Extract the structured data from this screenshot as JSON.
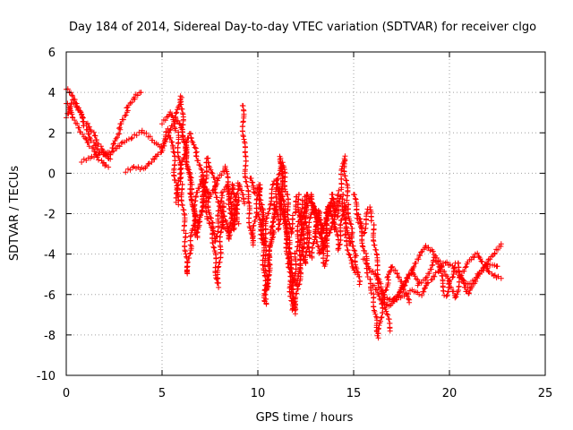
{
  "chart_data": {
    "type": "scatter",
    "title": "Day 184 of 2014, Sidereal Day-to-day VTEC variation (SDTVAR) for receiver clgo",
    "xlabel": "GPS time / hours",
    "ylabel": "SDTVAR / TECUs",
    "xlim": [
      0,
      25
    ],
    "ylim": [
      -10,
      6
    ],
    "x_ticks": [
      0,
      5,
      10,
      15,
      20,
      25
    ],
    "y_ticks": [
      -10,
      -8,
      -6,
      -4,
      -2,
      0,
      2,
      4,
      6
    ],
    "x_tick_labels": [
      "0",
      "5",
      "10",
      "15",
      "20",
      "25"
    ],
    "y_tick_labels": [
      "-10",
      "-8",
      "-6",
      "-4",
      "-2",
      "0",
      "2",
      "4",
      "6"
    ],
    "grid": true,
    "marker": "+",
    "colors": {
      "series": "#ff0000",
      "grid": "#a0a0a0",
      "axis": "#000000"
    },
    "series": [
      {
        "name": "clgo",
        "trace_segments": [
          [
            [
              0.0,
              4.2
            ],
            [
              0.3,
              3.8
            ],
            [
              0.6,
              3.2
            ],
            [
              1.0,
              2.5
            ],
            [
              1.4,
              2.0
            ],
            [
              1.8,
              1.3
            ],
            [
              2.2,
              0.8
            ],
            [
              2.6,
              1.2
            ],
            [
              3.0,
              1.5
            ],
            [
              3.5,
              1.8
            ],
            [
              4.0,
              2.1
            ],
            [
              4.5,
              1.6
            ],
            [
              5.0,
              1.2
            ],
            [
              5.3,
              2.2
            ]
          ],
          [
            [
              0.0,
              3.5
            ],
            [
              0.4,
              2.6
            ],
            [
              0.8,
              1.9
            ],
            [
              1.3,
              1.3
            ],
            [
              1.8,
              0.6
            ],
            [
              2.2,
              0.3
            ]
          ],
          [
            [
              0.0,
              2.8
            ],
            [
              0.3,
              3.6
            ],
            [
              0.7,
              3.0
            ],
            [
              1.0,
              2.2
            ],
            [
              1.4,
              1.5
            ],
            [
              1.9,
              0.9
            ],
            [
              2.4,
              1.1
            ],
            [
              2.8,
              2.2
            ],
            [
              3.2,
              3.2
            ],
            [
              3.6,
              3.8
            ],
            [
              3.9,
              4.0
            ]
          ],
          [
            [
              0.8,
              0.6
            ],
            [
              1.3,
              0.8
            ],
            [
              1.8,
              1.0
            ],
            [
              2.3,
              0.7
            ]
          ],
          [
            [
              3.1,
              0.1
            ],
            [
              3.5,
              0.3
            ],
            [
              4.0,
              0.2
            ],
            [
              4.4,
              0.6
            ],
            [
              4.9,
              1.0
            ],
            [
              5.3,
              1.8
            ],
            [
              5.7,
              2.6
            ],
            [
              6.0,
              3.8
            ],
            [
              6.1,
              2.0
            ],
            [
              6.3,
              0.5
            ],
            [
              6.6,
              -1.5
            ],
            [
              6.8,
              -3.0
            ],
            [
              7.0,
              -2.0
            ],
            [
              7.3,
              -0.8
            ],
            [
              7.6,
              -2.5
            ],
            [
              7.9,
              -5.6
            ],
            [
              8.2,
              -1.5
            ],
            [
              8.5,
              -3.3
            ],
            [
              8.7,
              -0.5
            ],
            [
              9.0,
              -2.5
            ]
          ],
          [
            [
              5.0,
              2.5
            ],
            [
              5.4,
              3.0
            ],
            [
              5.8,
              2.0
            ],
            [
              6.0,
              -0.5
            ],
            [
              6.2,
              -3.0
            ],
            [
              6.3,
              -5.0
            ],
            [
              6.5,
              -3.5
            ],
            [
              6.8,
              -1.2
            ],
            [
              7.1,
              -0.2
            ],
            [
              7.4,
              -2.2
            ],
            [
              7.8,
              -3.4
            ],
            [
              8.1,
              -1.0
            ],
            [
              8.4,
              -0.5
            ],
            [
              8.7,
              -2.8
            ],
            [
              9.0,
              -1.2
            ]
          ],
          [
            [
              5.4,
              1.8
            ],
            [
              5.6,
              1.0
            ],
            [
              5.7,
              -0.5
            ],
            [
              5.8,
              -1.5
            ],
            [
              5.9,
              -0.3
            ],
            [
              6.2,
              1.2
            ],
            [
              6.5,
              2.0
            ],
            [
              6.8,
              1.0
            ],
            [
              7.2,
              -0.5
            ],
            [
              7.5,
              -1.2
            ],
            [
              7.9,
              -0.3
            ],
            [
              8.3,
              0.3
            ],
            [
              8.6,
              -1.5
            ],
            [
              8.9,
              -2.0
            ]
          ],
          [
            [
              5.6,
              2.8
            ],
            [
              5.9,
              2.4
            ],
            [
              6.2,
              1.5
            ],
            [
              6.5,
              -0.5
            ],
            [
              6.8,
              -3.2
            ],
            [
              7.1,
              -1.5
            ],
            [
              7.4,
              0.8
            ],
            [
              7.8,
              -0.8
            ],
            [
              8.2,
              -2.6
            ],
            [
              8.6,
              -3.0
            ],
            [
              9.0,
              -0.5
            ],
            [
              9.3,
              -1.5
            ]
          ],
          [
            [
              9.2,
              3.4
            ],
            [
              9.3,
              1.0
            ],
            [
              9.5,
              -1.5
            ],
            [
              9.7,
              -3.5
            ],
            [
              9.9,
              -2.0
            ],
            [
              10.1,
              -0.6
            ],
            [
              10.3,
              -2.5
            ],
            [
              10.5,
              -5.8
            ],
            [
              10.7,
              -3.0
            ],
            [
              10.9,
              -1.5
            ],
            [
              11.1,
              -2.8
            ],
            [
              11.3,
              0.5
            ],
            [
              11.5,
              -1.0
            ],
            [
              11.7,
              -3.0
            ],
            [
              11.9,
              -2.0
            ],
            [
              12.1,
              -1.0
            ],
            [
              12.3,
              -3.5
            ],
            [
              12.5,
              -4.5
            ],
            [
              12.7,
              -2.6
            ],
            [
              12.9,
              -1.5
            ],
            [
              13.1,
              -2.0
            ],
            [
              13.3,
              -2.9
            ],
            [
              13.5,
              -4.6
            ],
            [
              13.7,
              -3.0
            ],
            [
              14.0,
              -2.0
            ],
            [
              14.3,
              -0.8
            ],
            [
              14.5,
              0.8
            ],
            [
              14.7,
              -1.5
            ],
            [
              14.9,
              -3.0
            ],
            [
              15.1,
              -4.2
            ],
            [
              15.3,
              -5.5
            ]
          ],
          [
            [
              9.6,
              -0.2
            ],
            [
              9.8,
              -1.0
            ],
            [
              10.0,
              -0.6
            ],
            [
              10.2,
              -2.0
            ],
            [
              10.4,
              -6.5
            ],
            [
              10.6,
              -4.2
            ],
            [
              10.8,
              -2.8
            ],
            [
              11.0,
              -0.8
            ],
            [
              11.2,
              0.8
            ],
            [
              11.4,
              -2.2
            ],
            [
              11.6,
              -4.5
            ],
            [
              11.8,
              -6.8
            ],
            [
              12.0,
              -3.8
            ],
            [
              12.2,
              -2.0
            ],
            [
              12.4,
              -1.2
            ],
            [
              12.6,
              -3.6
            ],
            [
              12.8,
              -4.2
            ],
            [
              13.0,
              -3.2
            ],
            [
              13.2,
              -1.8
            ],
            [
              13.4,
              -3.0
            ],
            [
              13.6,
              -2.0
            ],
            [
              13.9,
              -1.0
            ],
            [
              14.2,
              -3.8
            ],
            [
              14.5,
              -1.5
            ],
            [
              14.8,
              -3.5
            ]
          ],
          [
            [
              10.0,
              -2.0
            ],
            [
              10.3,
              -3.5
            ],
            [
              10.6,
              -1.6
            ],
            [
              10.9,
              -0.3
            ],
            [
              11.2,
              -1.2
            ],
            [
              11.5,
              -2.8
            ],
            [
              11.8,
              -5.0
            ],
            [
              12.1,
              -5.6
            ],
            [
              12.3,
              -2.5
            ],
            [
              12.6,
              -1.0
            ],
            [
              12.9,
              -1.8
            ],
            [
              13.2,
              -4.0
            ],
            [
              13.5,
              -3.5
            ],
            [
              13.8,
              -1.5
            ],
            [
              14.1,
              -2.2
            ],
            [
              14.4,
              -1.0
            ],
            [
              14.6,
              -3.2
            ],
            [
              14.9,
              -4.5
            ],
            [
              15.2,
              -5.0
            ]
          ],
          [
            [
              11.0,
              -0.5
            ],
            [
              11.3,
              -1.8
            ],
            [
              11.6,
              -3.2
            ],
            [
              11.9,
              -6.9
            ],
            [
              12.2,
              -5.0
            ],
            [
              12.5,
              -2.2
            ],
            [
              12.8,
              -1.0
            ],
            [
              13.1,
              -2.4
            ],
            [
              13.4,
              -3.8
            ],
            [
              13.7,
              -1.6
            ],
            [
              14.0,
              -2.8
            ]
          ],
          [
            [
              15.0,
              -1.0
            ],
            [
              15.3,
              -2.5
            ],
            [
              15.6,
              -4.0
            ],
            [
              15.8,
              -5.2
            ],
            [
              16.0,
              -6.0
            ],
            [
              16.2,
              -7.3
            ],
            [
              16.3,
              -8.1
            ],
            [
              16.5,
              -6.5
            ],
            [
              16.8,
              -5.2
            ],
            [
              17.0,
              -4.6
            ],
            [
              17.3,
              -5.0
            ],
            [
              17.6,
              -5.8
            ],
            [
              17.9,
              -6.4
            ]
          ],
          [
            [
              15.2,
              -2.0
            ],
            [
              15.5,
              -3.0
            ],
            [
              15.8,
              -1.7
            ],
            [
              16.0,
              -2.5
            ],
            [
              16.2,
              -4.4
            ],
            [
              16.4,
              -5.5
            ],
            [
              16.6,
              -6.2
            ],
            [
              16.9,
              -7.8
            ]
          ],
          [
            [
              15.5,
              -4.2
            ],
            [
              15.8,
              -4.8
            ],
            [
              16.1,
              -5.0
            ],
            [
              16.4,
              -5.8
            ],
            [
              16.7,
              -6.2
            ],
            [
              17.0,
              -6.3
            ],
            [
              17.4,
              -6.0
            ],
            [
              17.8,
              -5.2
            ],
            [
              18.1,
              -4.8
            ],
            [
              18.4,
              -5.5
            ],
            [
              18.8,
              -5.2
            ],
            [
              19.2,
              -4.2
            ],
            [
              19.5,
              -4.8
            ],
            [
              19.8,
              -6.1
            ],
            [
              20.1,
              -5.2
            ],
            [
              20.4,
              -4.4
            ],
            [
              20.7,
              -5.3
            ],
            [
              21.0,
              -6.0
            ],
            [
              21.4,
              -5.3
            ],
            [
              21.8,
              -4.7
            ],
            [
              22.1,
              -4.3
            ],
            [
              22.4,
              -3.9
            ],
            [
              22.7,
              -3.5
            ]
          ],
          [
            [
              16.0,
              -5.5
            ],
            [
              16.4,
              -6.3
            ],
            [
              16.8,
              -6.6
            ],
            [
              17.2,
              -6.2
            ],
            [
              17.6,
              -5.6
            ],
            [
              18.0,
              -5.0
            ],
            [
              18.4,
              -4.2
            ],
            [
              18.8,
              -3.6
            ],
            [
              19.2,
              -3.9
            ],
            [
              19.6,
              -4.6
            ],
            [
              20.0,
              -5.5
            ],
            [
              20.3,
              -6.2
            ],
            [
              20.6,
              -5.0
            ],
            [
              21.0,
              -4.3
            ],
            [
              21.4,
              -4.0
            ],
            [
              21.8,
              -4.5
            ],
            [
              22.2,
              -5.0
            ],
            [
              22.7,
              -5.2
            ]
          ],
          [
            [
              17.0,
              -6.3
            ],
            [
              17.5,
              -6.1
            ],
            [
              18.0,
              -5.8
            ],
            [
              18.5,
              -6.0
            ],
            [
              19.0,
              -5.3
            ],
            [
              19.4,
              -4.9
            ],
            [
              19.8,
              -4.4
            ],
            [
              20.2,
              -4.6
            ],
            [
              20.6,
              -5.1
            ],
            [
              21.0,
              -5.6
            ],
            [
              21.5,
              -5.0
            ],
            [
              22.0,
              -4.5
            ],
            [
              22.5,
              -4.6
            ]
          ]
        ]
      }
    ]
  }
}
